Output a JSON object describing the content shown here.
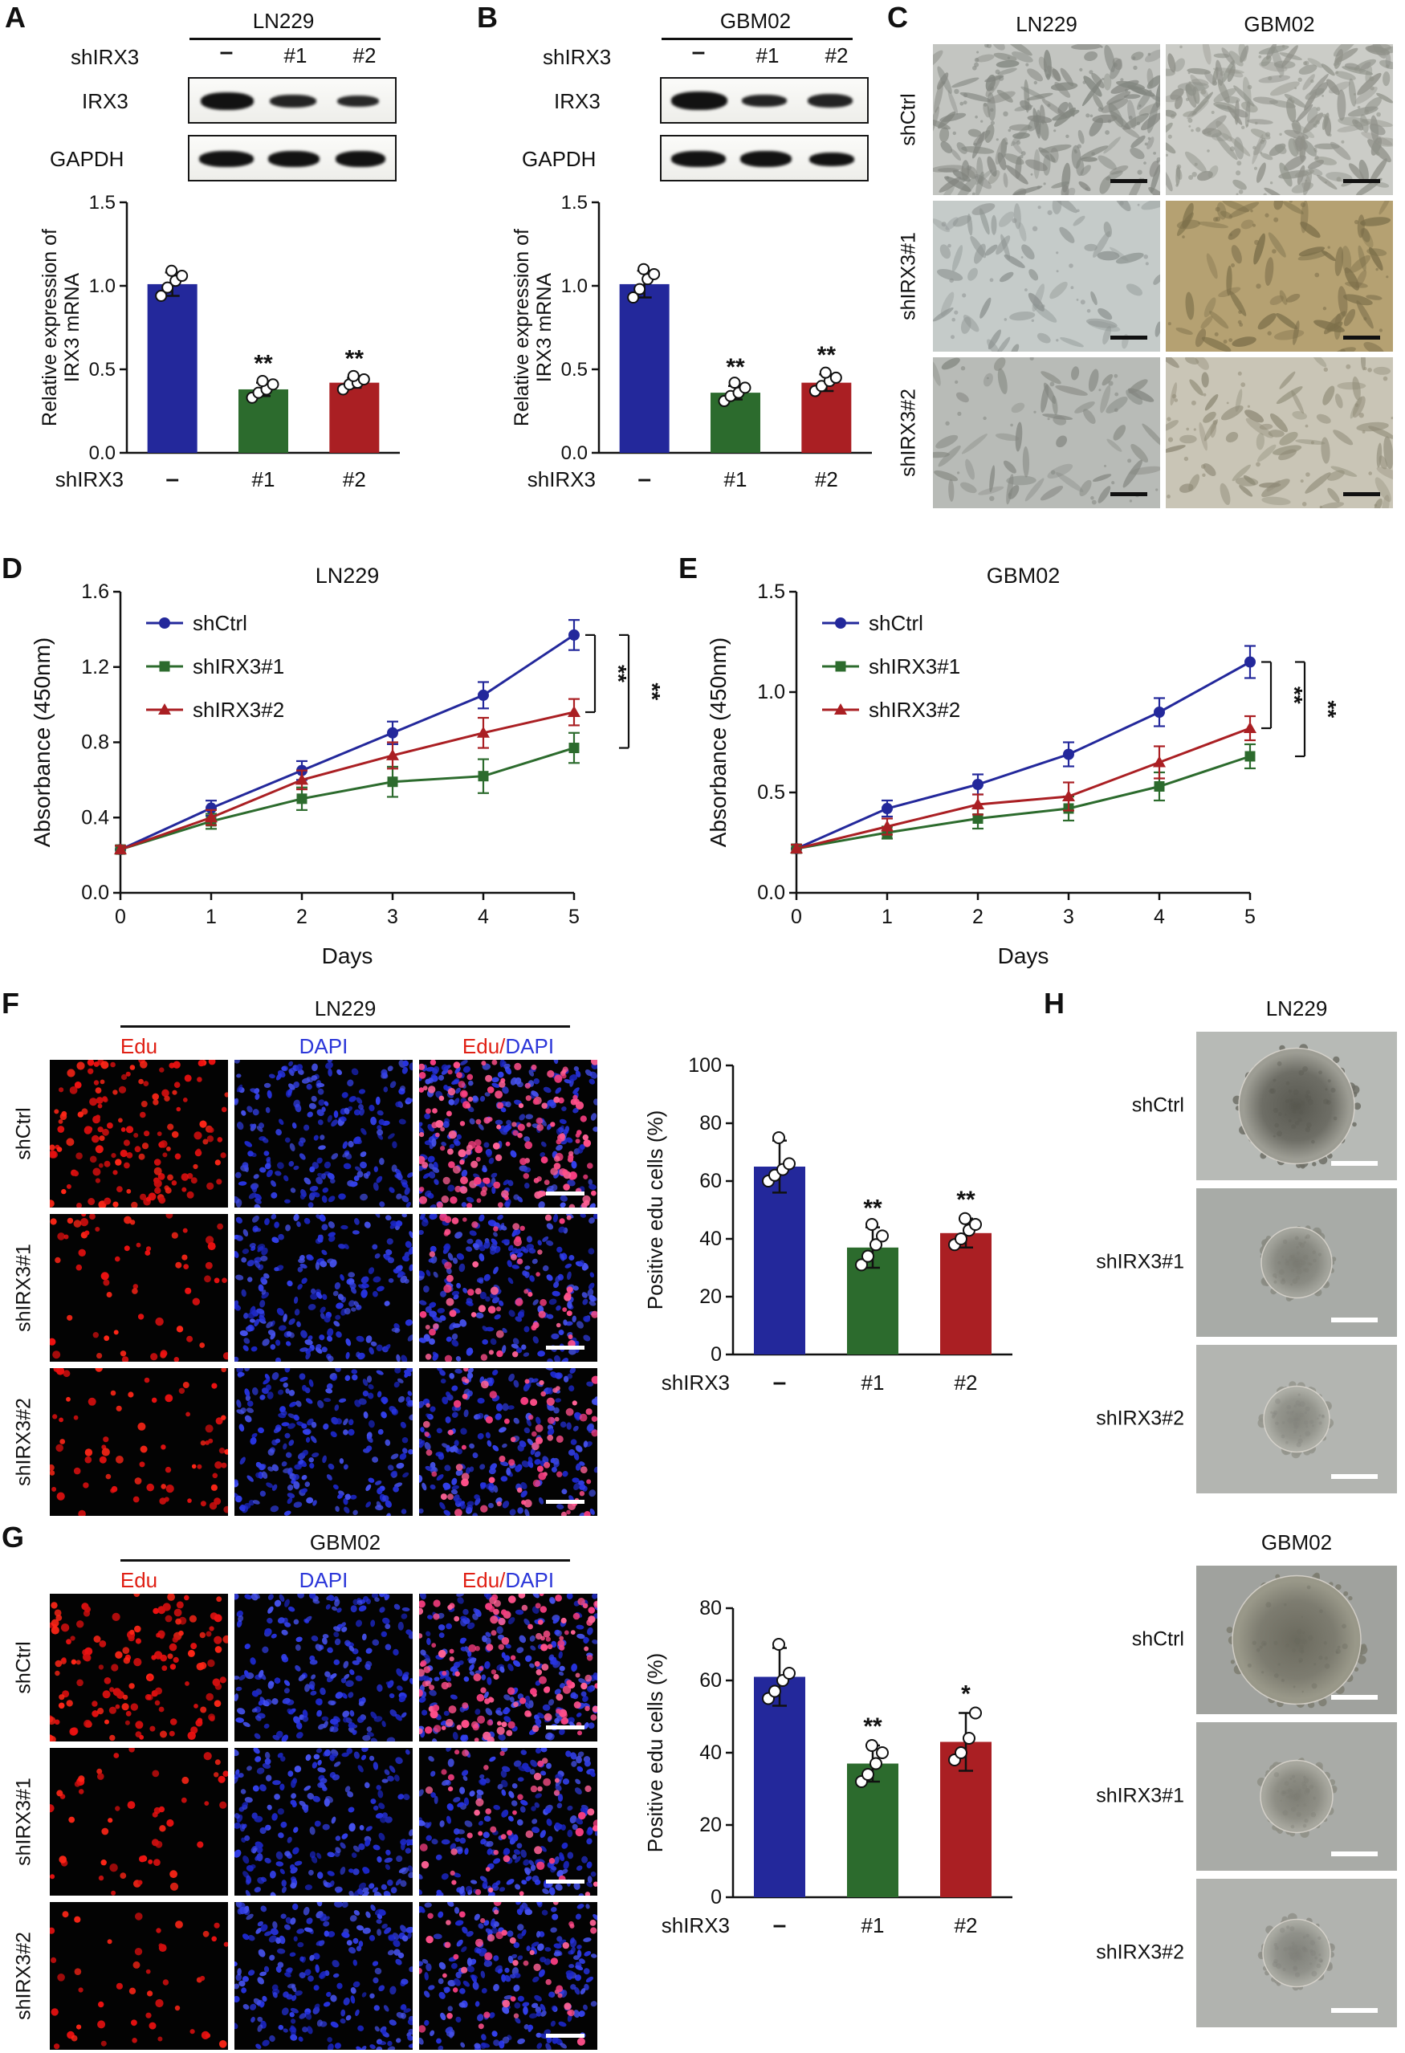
{
  "panels": {
    "A": {
      "letter": "A",
      "cell_line": "LN229",
      "sh_label": "shIRX3",
      "lanes": [
        "–",
        "#1",
        "#2"
      ],
      "blots": [
        "IRX3",
        "GAPDH"
      ]
    },
    "B": {
      "letter": "B",
      "cell_line": "GBM02",
      "sh_label": "shIRX3",
      "lanes": [
        "–",
        "#1",
        "#2"
      ],
      "blots": [
        "IRX3",
        "GAPDH"
      ]
    },
    "C": {
      "letter": "C",
      "columns": [
        "LN229",
        "GBM02"
      ],
      "rows": [
        "shCtrl",
        "shIRX3#1",
        "shIRX3#2"
      ]
    },
    "D": {
      "letter": "D"
    },
    "E": {
      "letter": "E"
    },
    "F": {
      "letter": "F",
      "cell_line": "LN229",
      "col_headers": [
        "Edu",
        "DAPI",
        "Edu/DAPI"
      ],
      "merge_parts": {
        "left": "Edu",
        "sep": "/",
        "right": "DAPI"
      },
      "rows": [
        "shCtrl",
        "shIRX3#1",
        "shIRX3#2"
      ]
    },
    "G": {
      "letter": "G",
      "cell_line": "GBM02",
      "col_headers": [
        "Edu",
        "DAPI",
        "Edu/DAPI"
      ],
      "merge_parts": {
        "left": "Edu",
        "sep": "/",
        "right": "DAPI"
      },
      "rows": [
        "shCtrl",
        "shIRX3#1",
        "shIRX3#2"
      ]
    },
    "H": {
      "letter": "H"
    }
  },
  "chart_data": [
    {
      "id": "A_bar",
      "type": "bar",
      "panel": "A",
      "ylabel_lines": [
        "Relative expression of",
        "IRX3 mRNA"
      ],
      "xlabel_prefix": "shIRX3",
      "categories": [
        "–",
        "#1",
        "#2"
      ],
      "values": [
        1.01,
        0.38,
        0.42
      ],
      "errors": [
        0.07,
        0.04,
        0.03
      ],
      "points": [
        [
          0.94,
          0.99,
          1.03,
          1.06,
          1.09
        ],
        [
          0.33,
          0.36,
          0.38,
          0.41,
          0.43
        ],
        [
          0.38,
          0.41,
          0.42,
          0.44,
          0.46
        ]
      ],
      "bar_colors": [
        "#23289b",
        "#2c6b2d",
        "#aa1f23"
      ],
      "significance": [
        "",
        "**",
        "**"
      ],
      "ylim": [
        0,
        1.5
      ],
      "yticks": [
        0,
        0.5,
        1,
        1.5
      ],
      "ytick_labels": [
        "0.0",
        "0.5",
        "1.0",
        "1.5"
      ]
    },
    {
      "id": "B_bar",
      "type": "bar",
      "panel": "B",
      "ylabel_lines": [
        "Relative expression of",
        "IRX3 mRNA"
      ],
      "xlabel_prefix": "shIRX3",
      "categories": [
        "–",
        "#1",
        "#2"
      ],
      "values": [
        1.01,
        0.36,
        0.42
      ],
      "errors": [
        0.08,
        0.04,
        0.05
      ],
      "points": [
        [
          0.93,
          0.98,
          1.04,
          1.07,
          1.1
        ],
        [
          0.31,
          0.34,
          0.36,
          0.39,
          0.42
        ],
        [
          0.37,
          0.4,
          0.43,
          0.45,
          0.48
        ]
      ],
      "bar_colors": [
        "#23289b",
        "#2c6b2d",
        "#aa1f23"
      ],
      "significance": [
        "",
        "**",
        "**"
      ],
      "ylim": [
        0,
        1.5
      ],
      "yticks": [
        0,
        0.5,
        1,
        1.5
      ],
      "ytick_labels": [
        "0.0",
        "0.5",
        "1.0",
        "1.5"
      ]
    },
    {
      "id": "D_line",
      "type": "line",
      "panel": "D",
      "title": "LN229",
      "xlabel": "Days",
      "ylabel": "Absorbance (450nm)",
      "x": [
        0,
        1,
        2,
        3,
        4,
        5
      ],
      "xtick_labels": [
        "0",
        "1",
        "2",
        "3",
        "4",
        "5"
      ],
      "ylim": [
        0,
        1.6
      ],
      "yticks": [
        0,
        0.4,
        0.8,
        1.2,
        1.6
      ],
      "ytick_labels": [
        "0.0",
        "0.4",
        "0.8",
        "1.2",
        "1.6"
      ],
      "series": [
        {
          "name": "shCtrl",
          "color": "#23289b",
          "marker": "circle",
          "values": [
            0.23,
            0.45,
            0.65,
            0.85,
            1.05,
            1.37
          ],
          "errors": [
            0.02,
            0.04,
            0.05,
            0.06,
            0.07,
            0.08
          ]
        },
        {
          "name": "shIRX3#1",
          "color": "#2c6b2d",
          "marker": "square",
          "values": [
            0.23,
            0.38,
            0.5,
            0.59,
            0.62,
            0.77
          ],
          "errors": [
            0.02,
            0.04,
            0.06,
            0.08,
            0.09,
            0.08
          ]
        },
        {
          "name": "shIRX3#2",
          "color": "#aa1f23",
          "marker": "triangle",
          "values": [
            0.23,
            0.4,
            0.6,
            0.73,
            0.85,
            0.96
          ],
          "errors": [
            0.02,
            0.04,
            0.05,
            0.07,
            0.08,
            0.07
          ]
        }
      ],
      "comparisons": [
        {
          "a": 0,
          "b": 2,
          "label": "**"
        },
        {
          "a": 0,
          "b": 1,
          "label": "**"
        }
      ],
      "legend_position": "top-left"
    },
    {
      "id": "E_line",
      "type": "line",
      "panel": "E",
      "title": "GBM02",
      "xlabel": "Days",
      "ylabel": "Absorbance (450nm)",
      "x": [
        0,
        1,
        2,
        3,
        4,
        5
      ],
      "xtick_labels": [
        "0",
        "1",
        "2",
        "3",
        "4",
        "5"
      ],
      "ylim": [
        0,
        1.5
      ],
      "yticks": [
        0,
        0.5,
        1,
        1.5
      ],
      "ytick_labels": [
        "0.0",
        "0.5",
        "1.0",
        "1.5"
      ],
      "series": [
        {
          "name": "shCtrl",
          "color": "#23289b",
          "marker": "circle",
          "values": [
            0.22,
            0.42,
            0.54,
            0.69,
            0.9,
            1.15
          ],
          "errors": [
            0.02,
            0.04,
            0.05,
            0.06,
            0.07,
            0.08
          ]
        },
        {
          "name": "shIRX3#1",
          "color": "#2c6b2d",
          "marker": "square",
          "values": [
            0.22,
            0.3,
            0.37,
            0.42,
            0.53,
            0.68
          ],
          "errors": [
            0.02,
            0.03,
            0.05,
            0.06,
            0.07,
            0.06
          ]
        },
        {
          "name": "shIRX3#2",
          "color": "#aa1f23",
          "marker": "triangle",
          "values": [
            0.22,
            0.33,
            0.44,
            0.48,
            0.65,
            0.82
          ],
          "errors": [
            0.02,
            0.04,
            0.05,
            0.07,
            0.08,
            0.06
          ]
        }
      ],
      "comparisons": [
        {
          "a": 0,
          "b": 2,
          "label": "**"
        },
        {
          "a": 0,
          "b": 1,
          "label": "**"
        }
      ],
      "legend_position": "top-left"
    },
    {
      "id": "F_bar",
      "type": "bar",
      "panel": "F",
      "ylabel_lines": [
        "Positive edu cells (%)"
      ],
      "xlabel_prefix": "shIRX3",
      "categories": [
        "–",
        "#1",
        "#2"
      ],
      "values": [
        65,
        37,
        42
      ],
      "errors": [
        9,
        7,
        5
      ],
      "points": [
        [
          60,
          62,
          64,
          66,
          75
        ],
        [
          31,
          34,
          38,
          41,
          45
        ],
        [
          38,
          40,
          43,
          45,
          47
        ]
      ],
      "bar_colors": [
        "#23289b",
        "#2c6b2d",
        "#aa1f23"
      ],
      "significance": [
        "",
        "**",
        "**"
      ],
      "ylim": [
        0,
        100
      ],
      "yticks": [
        0,
        20,
        40,
        60,
        80,
        100
      ],
      "ytick_labels": [
        "0",
        "20",
        "40",
        "60",
        "80",
        "100"
      ]
    },
    {
      "id": "G_bar",
      "type": "bar",
      "panel": "G",
      "ylabel_lines": [
        "Positive edu cells (%)"
      ],
      "xlabel_prefix": "shIRX3",
      "categories": [
        "–",
        "#1",
        "#2"
      ],
      "values": [
        61,
        37,
        43
      ],
      "errors": [
        8,
        5,
        8
      ],
      "points": [
        [
          55,
          57,
          60,
          62,
          70
        ],
        [
          32,
          34,
          37,
          40,
          42
        ],
        [
          38,
          40,
          44,
          51
        ]
      ],
      "bar_colors": [
        "#23289b",
        "#2c6b2d",
        "#aa1f23"
      ],
      "significance": [
        "",
        "**",
        "*"
      ],
      "ylim": [
        0,
        80
      ],
      "yticks": [
        0,
        20,
        40,
        60,
        80
      ],
      "ytick_labels": [
        "0",
        "20",
        "40",
        "60",
        "80"
      ]
    }
  ],
  "microscopy": {
    "panelC": {
      "scalebar_color": "#111111",
      "tiles": [
        {
          "name": "LN229-shCtrl",
          "bg": "#c3c5c1",
          "cell": "#82857f",
          "count": 150
        },
        {
          "name": "GBM02-shCtrl",
          "bg": "#cbccc7",
          "cell": "#8f9189",
          "count": 160
        },
        {
          "name": "LN229-shIRX3#1",
          "bg": "#c5cbc9",
          "cell": "#8e9492",
          "count": 60
        },
        {
          "name": "GBM02-shIRX3#1",
          "bg": "#b5a172",
          "cell": "#7c6f4a",
          "count": 65
        },
        {
          "name": "LN229-shIRX3#2",
          "bg": "#b8bbb7",
          "cell": "#848781",
          "count": 55
        },
        {
          "name": "GBM02-shIRX3#2",
          "bg": "#c9c5b6",
          "cell": "#8f8b77",
          "count": 70
        }
      ]
    },
    "panelF": {
      "edu_counts": [
        150,
        60,
        70
      ],
      "dapi_count": 210,
      "edu_colors": [
        "#ee1111",
        "#ff2617",
        "#cf0e0e"
      ],
      "dapi_colors": [
        "#2733e0",
        "#3340ea",
        "#1c27c8",
        "#4652ee"
      ],
      "merge_colors": [
        "#ff4f8a",
        "#ff6296",
        "#f53d7f"
      ]
    },
    "panelG": {
      "edu_counts": [
        140,
        50,
        45
      ],
      "dapi_count": 210,
      "edu_colors": [
        "#ee1111",
        "#ff2617",
        "#cf0e0e"
      ],
      "dapi_colors": [
        "#2733e0",
        "#3340ea",
        "#1c27c8",
        "#4652ee"
      ],
      "merge_colors": [
        "#ff4f8a",
        "#ff6296",
        "#f53d7f"
      ]
    },
    "panelH": {
      "scalebar_color": "#ffffff",
      "groups": [
        {
          "cell_line": "LN229",
          "tiles": [
            {
              "label": "shCtrl",
              "bg": "#b7bab6",
              "inner": "#585850",
              "mid": "#6e6e66",
              "rim": "#9d9d94",
              "r": 72
            },
            {
              "label": "shIRX3#1",
              "bg": "#a8aba7",
              "inner": "#7a7b73",
              "mid": "#8a8b83",
              "rim": "#a3a49c",
              "r": 44
            },
            {
              "label": "shIRX3#2",
              "bg": "#b3b5b1",
              "inner": "#84857d",
              "mid": "#94958d",
              "rim": "#acada5",
              "r": 41
            }
          ]
        },
        {
          "cell_line": "GBM02",
          "tiles": [
            {
              "label": "shCtrl",
              "bg": "#a0a29e",
              "inner": "#6b6a5e",
              "mid": "#7d7c70",
              "rim": "#999889",
              "r": 80
            },
            {
              "label": "shIRX3#1",
              "bg": "#a9aba7",
              "inner": "#7e7e75",
              "mid": "#8e8e85",
              "rim": "#a7a79e",
              "r": 45
            },
            {
              "label": "shIRX3#2",
              "bg": "#b1b3af",
              "inner": "#80817a",
              "mid": "#90918a",
              "rim": "#a9aaa2",
              "r": 42
            }
          ]
        }
      ]
    }
  }
}
